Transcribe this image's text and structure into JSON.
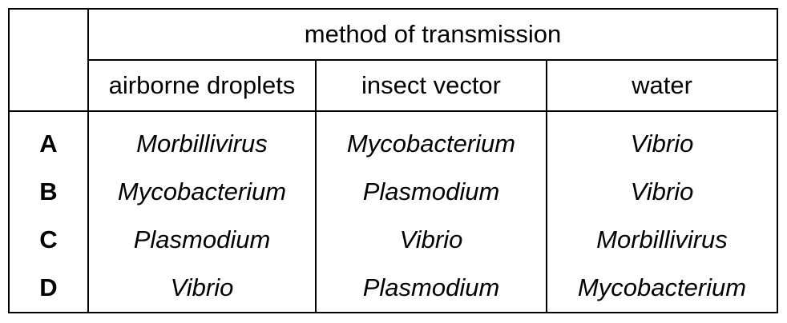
{
  "table": {
    "header_group": "method of transmission",
    "columns": [
      "airborne droplets",
      "insect vector",
      "water"
    ],
    "rows": [
      {
        "label": "A",
        "cells": [
          "Morbillivirus",
          "Mycobacterium",
          "Vibrio"
        ]
      },
      {
        "label": "B",
        "cells": [
          "Mycobacterium",
          "Plasmodium",
          "Vibrio"
        ]
      },
      {
        "label": "C",
        "cells": [
          "Plasmodium",
          "Vibrio",
          "Morbillivirus"
        ]
      },
      {
        "label": "D",
        "cells": [
          "Vibrio",
          "Plasmodium",
          "Mycobacterium"
        ]
      }
    ]
  }
}
